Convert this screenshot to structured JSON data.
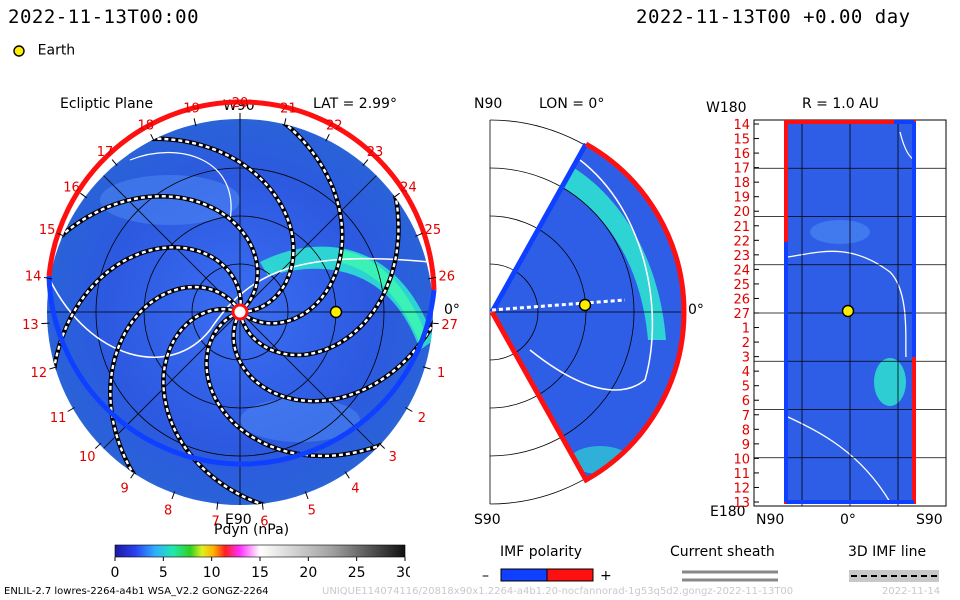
{
  "header": {
    "time_left": "2022-11-13T00:00",
    "time_right": "2022-11-13T00 +0.00 day",
    "earth_legend": "Earth"
  },
  "colors": {
    "background_field": "#2f5ee6",
    "high_density": "#2ee8d0",
    "positive_polarity": "#ff1010",
    "negative_polarity": "#1040ff",
    "earth_marker": "#ffee00",
    "tick_red": "#e00000"
  },
  "panels": {
    "ecliptic": {
      "title": "Ecliptic Plane",
      "lat_label": "LAT = 2.99°",
      "w90": "W90",
      "e90": "E90",
      "zero": "0°",
      "cr_ticks": [
        "19",
        "20",
        "21",
        "22",
        "23",
        "24",
        "25",
        "26",
        "27",
        "1",
        "2",
        "3",
        "4",
        "5",
        "6",
        "7",
        "8",
        "9",
        "10",
        "11",
        "12",
        "13",
        "14",
        "15",
        "16",
        "17",
        "18"
      ]
    },
    "meridional": {
      "n90": "N90",
      "s90": "S90",
      "lon_label": "LON = 0°",
      "zero": "0°"
    },
    "radial": {
      "title": "R = 1.0 AU",
      "w180": "W180",
      "e180": "E180",
      "n90": "N90",
      "s90": "S90",
      "zero": "0°",
      "cr_ticks": [
        "14",
        "15",
        "16",
        "17",
        "18",
        "19",
        "20",
        "21",
        "22",
        "23",
        "24",
        "25",
        "26",
        "27",
        "1",
        "2",
        "3",
        "4",
        "5",
        "6",
        "7",
        "8",
        "9",
        "10",
        "11",
        "12",
        "13"
      ]
    }
  },
  "colorbar": {
    "label": "Pdyn (nPa)",
    "unit": "nPa",
    "range": [
      0,
      30
    ],
    "ticks": [
      "0",
      "5",
      "10",
      "15",
      "20",
      "25",
      "30"
    ]
  },
  "legends": {
    "imf_polarity": "IMF polarity",
    "minus": "–",
    "plus": "+",
    "current_sheath": "Current sheath",
    "imf_line": "3D IMF line"
  },
  "footer": {
    "model": "ENLIL-2.7 lowres-2264-a4b1 WSA_V2.2 GONGZ-2264",
    "run_id": "UNIQUE114074116/20818x90x1.2264-a4b1.20-nocfannorad-1g53q5d2.gongz-2022-11-13T00",
    "date": "2022-11-14"
  },
  "chart_data": [
    {
      "type": "heatmap",
      "title": "Ecliptic Plane",
      "view": "ecliptic plane",
      "latitude_deg": 2.99,
      "quantity": "Pdyn",
      "unit": "nPa",
      "color_range": [
        0,
        30
      ],
      "earth_position": {
        "lon_deg": 0,
        "r_au": 1.0
      },
      "carrington_ticks": [
        "19",
        "20",
        "21",
        "22",
        "23",
        "24",
        "25",
        "26",
        "27",
        "1",
        "2",
        "3",
        "4",
        "5",
        "6",
        "7",
        "8",
        "9",
        "10",
        "11",
        "12",
        "13",
        "14",
        "15",
        "16",
        "17",
        "18"
      ],
      "imf_lines": 9
    },
    {
      "type": "heatmap",
      "view": "meridional plane",
      "longitude_deg": 0,
      "quantity": "Pdyn",
      "unit": "nPa",
      "lat_range_deg": [
        -60,
        60
      ],
      "earth_position": {
        "lat_deg": 0,
        "r_au": 1.0
      }
    },
    {
      "type": "heatmap",
      "title": "R = 1.0 AU",
      "view": "constant radius",
      "radius_au": 1.0,
      "quantity": "Pdyn",
      "unit": "nPa",
      "x_range_labels": [
        "N90",
        "S90"
      ],
      "y_range_labels": [
        "W180",
        "E180"
      ],
      "carrington_ticks": [
        "14",
        "15",
        "16",
        "17",
        "18",
        "19",
        "20",
        "21",
        "22",
        "23",
        "24",
        "25",
        "26",
        "27",
        "1",
        "2",
        "3",
        "4",
        "5",
        "6",
        "7",
        "8",
        "9",
        "10",
        "11",
        "12",
        "13"
      ]
    }
  ]
}
